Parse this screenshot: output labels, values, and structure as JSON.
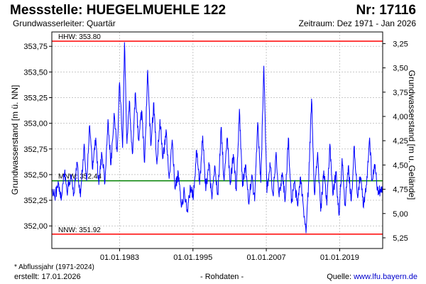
{
  "header": {
    "title_left": "Messstelle: HUEGELMUEHLE 122",
    "title_right": "Nr: 17116",
    "subtitle_left": "Grundwasserleiter: Quartär",
    "subtitle_right": "Zeitraum: Dez 1971 - Jan 2026"
  },
  "footer": {
    "note": "* Abflussjahr (1971-2024)",
    "created": "erstellt:  17.01.2026",
    "middle": "- Rohdaten -",
    "source_prefix": "Quelle: ",
    "source_link": "www.lfu.bayern.de"
  },
  "colors": {
    "series": "#0000ff",
    "hhw_line": "#ff0000",
    "nnw_line": "#ff0000",
    "mnw_line": "#008000",
    "grid": "#c8c8c8"
  },
  "chart_data": {
    "type": "line",
    "ylabel": "Grundwasserstand [m ü. NN]",
    "y2label": "Grundwasserstand [m u. Gelände]",
    "ylim": [
      351.91,
      353.8
    ],
    "xlim": [
      "1971-12-01",
      "2026-01-15"
    ],
    "x_ticks": [
      "01.01.1983",
      "01.01.1995",
      "01.01.2007",
      "01.01.2019"
    ],
    "y_ticks": [
      "352,00",
      "352,25",
      "352,50",
      "352,75",
      "353,00",
      "353,25",
      "353,50",
      "353,75"
    ],
    "y2_ticks": [
      "3,25",
      "3,50",
      "3,75",
      "4,00",
      "4,25",
      "4,50",
      "4,75",
      "5,00",
      "5,25"
    ],
    "reference_lines": [
      {
        "label": "HHW: 353.80",
        "value": 353.8,
        "color": "#ff0000"
      },
      {
        "label": "MNW: 352.44",
        "value": 352.44,
        "color": "#008000"
      },
      {
        "label": "NNW: 351.92",
        "value": 351.92,
        "color": "#ff0000"
      }
    ],
    "grid": true,
    "series": [
      {
        "values_note_x": "decimal year",
        "points": [
          [
            1972.0,
            352.36
          ],
          [
            1972.5,
            352.3
          ],
          [
            1973.0,
            352.42
          ],
          [
            1973.5,
            352.28
          ],
          [
            1974.0,
            352.52
          ],
          [
            1974.4,
            352.33
          ],
          [
            1975.0,
            352.48
          ],
          [
            1975.5,
            352.31
          ],
          [
            1976.0,
            352.62
          ],
          [
            1976.6,
            352.28
          ],
          [
            1977.2,
            352.8
          ],
          [
            1977.6,
            352.44
          ],
          [
            1978.1,
            352.98
          ],
          [
            1978.6,
            352.55
          ],
          [
            1979.1,
            352.86
          ],
          [
            1979.6,
            352.4
          ],
          [
            1980.1,
            352.7
          ],
          [
            1980.6,
            352.42
          ],
          [
            1981.1,
            353.04
          ],
          [
            1981.6,
            352.6
          ],
          [
            1982.1,
            353.1
          ],
          [
            1982.6,
            352.72
          ],
          [
            1983.0,
            353.4
          ],
          [
            1983.5,
            352.76
          ],
          [
            1983.8,
            353.79
          ],
          [
            1984.2,
            352.8
          ],
          [
            1984.6,
            353.22
          ],
          [
            1985.1,
            352.7
          ],
          [
            1985.6,
            353.3
          ],
          [
            1986.1,
            352.84
          ],
          [
            1986.6,
            353.12
          ],
          [
            1987.1,
            352.62
          ],
          [
            1987.6,
            353.52
          ],
          [
            1988.1,
            352.78
          ],
          [
            1988.6,
            353.2
          ],
          [
            1989.1,
            352.6
          ],
          [
            1989.6,
            353.04
          ],
          [
            1990.1,
            352.66
          ],
          [
            1990.6,
            352.94
          ],
          [
            1991.1,
            352.46
          ],
          [
            1991.6,
            352.84
          ],
          [
            1992.1,
            352.36
          ],
          [
            1992.6,
            352.52
          ],
          [
            1993.1,
            352.18
          ],
          [
            1993.6,
            352.34
          ],
          [
            1994.1,
            352.14
          ],
          [
            1994.6,
            352.38
          ],
          [
            1995.1,
            352.3
          ],
          [
            1995.6,
            352.74
          ],
          [
            1996.1,
            352.4
          ],
          [
            1996.6,
            352.88
          ],
          [
            1997.1,
            352.34
          ],
          [
            1997.6,
            352.62
          ],
          [
            1998.1,
            352.26
          ],
          [
            1998.6,
            352.58
          ],
          [
            1999.1,
            352.3
          ],
          [
            1999.6,
            352.96
          ],
          [
            2000.1,
            352.44
          ],
          [
            2000.6,
            352.86
          ],
          [
            2001.1,
            352.4
          ],
          [
            2001.6,
            352.7
          ],
          [
            2002.1,
            352.34
          ],
          [
            2002.6,
            353.14
          ],
          [
            2003.1,
            352.38
          ],
          [
            2003.6,
            352.6
          ],
          [
            2004.1,
            352.22
          ],
          [
            2004.6,
            352.48
          ],
          [
            2005.1,
            352.24
          ],
          [
            2005.6,
            353.01
          ],
          [
            2006.1,
            352.42
          ],
          [
            2006.6,
            353.56
          ],
          [
            2007.1,
            352.32
          ],
          [
            2007.6,
            352.62
          ],
          [
            2008.1,
            352.3
          ],
          [
            2008.6,
            352.72
          ],
          [
            2009.1,
            352.28
          ],
          [
            2009.6,
            352.52
          ],
          [
            2010.1,
            352.26
          ],
          [
            2010.6,
            352.86
          ],
          [
            2011.1,
            352.22
          ],
          [
            2011.6,
            352.42
          ],
          [
            2012.1,
            352.2
          ],
          [
            2012.6,
            352.48
          ],
          [
            2013.1,
            352.16
          ],
          [
            2013.5,
            351.93
          ],
          [
            2013.9,
            352.4
          ],
          [
            2014.4,
            353.24
          ],
          [
            2014.9,
            352.3
          ],
          [
            2015.4,
            352.72
          ],
          [
            2015.9,
            352.14
          ],
          [
            2016.4,
            352.54
          ],
          [
            2016.9,
            352.2
          ],
          [
            2017.4,
            352.8
          ],
          [
            2017.9,
            352.3
          ],
          [
            2018.4,
            352.52
          ],
          [
            2018.9,
            352.1
          ],
          [
            2019.4,
            352.66
          ],
          [
            2019.9,
            352.2
          ],
          [
            2020.4,
            352.58
          ],
          [
            2020.9,
            352.24
          ],
          [
            2021.4,
            352.78
          ],
          [
            2021.9,
            352.3
          ],
          [
            2022.4,
            352.48
          ],
          [
            2022.9,
            352.18
          ],
          [
            2023.4,
            352.4
          ],
          [
            2023.9,
            352.86
          ],
          [
            2024.3,
            352.44
          ],
          [
            2024.8,
            352.6
          ],
          [
            2025.3,
            352.3
          ],
          [
            2025.8,
            352.38
          ],
          [
            2026.0,
            352.36
          ]
        ]
      }
    ]
  }
}
